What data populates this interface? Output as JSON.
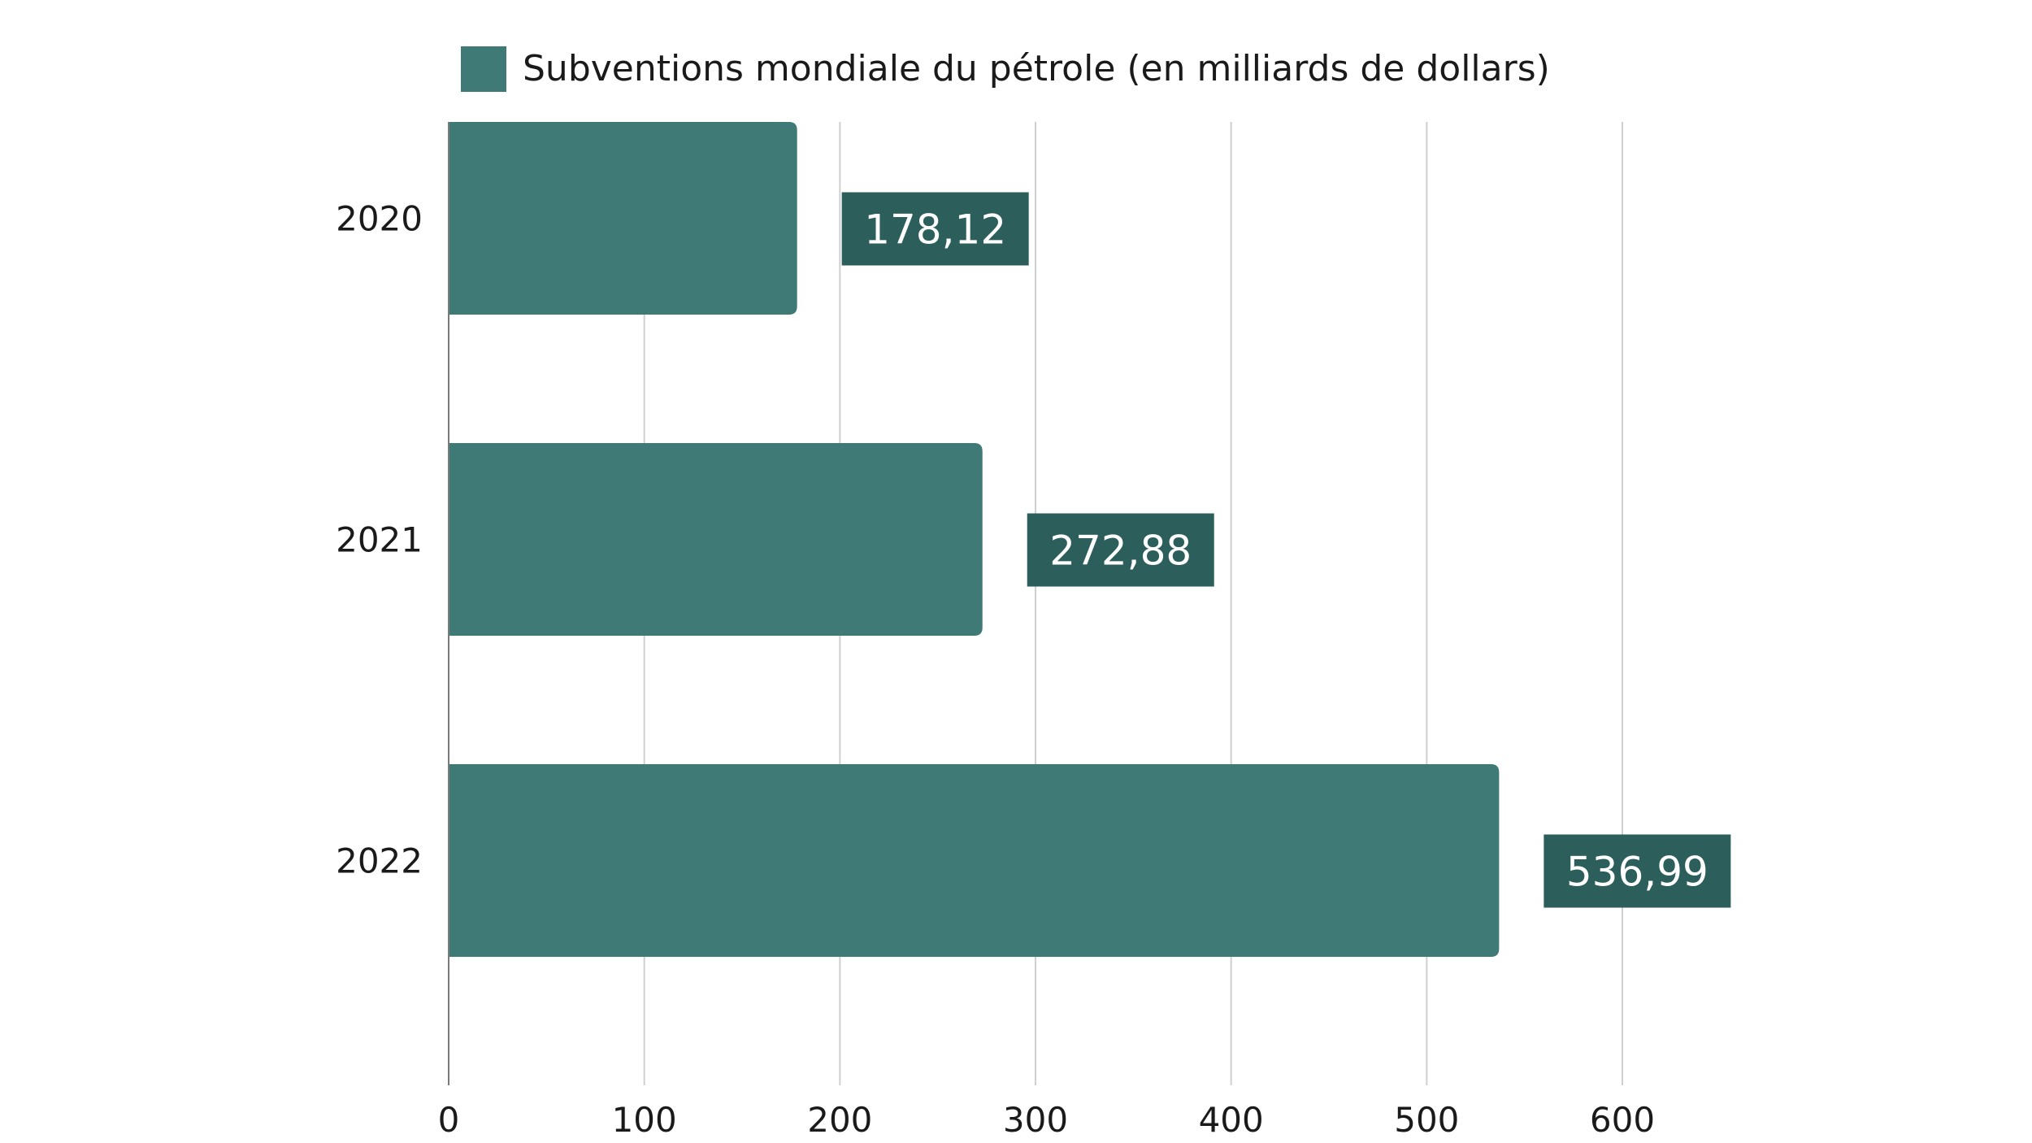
{
  "chart_data": {
    "type": "bar",
    "orientation": "horizontal",
    "categories": [
      "2020",
      "2021",
      "2022"
    ],
    "series": [
      {
        "name": "Subventions mondiale du pétrole (en milliards de dollars)",
        "values": [
          178.12,
          272.88,
          536.99
        ],
        "data_labels": [
          "178,12",
          "272,88",
          "536,99"
        ]
      }
    ],
    "xlim": [
      0,
      600
    ],
    "xticks": [
      0,
      100,
      200,
      300,
      400,
      500,
      600
    ],
    "xtick_labels": [
      "0",
      "100",
      "200",
      "300",
      "400",
      "500",
      "600"
    ],
    "grid": "vertical",
    "legend_position": "top",
    "title": "",
    "xlabel": "",
    "ylabel": "",
    "colors": {
      "bar": "#3f7a77",
      "data_label_bg": "#2c5f5c",
      "data_label_text": "#ffffff",
      "grid": "#cfcfcf",
      "axis": "#7a7a7a",
      "text": "#1a1a1a"
    }
  }
}
